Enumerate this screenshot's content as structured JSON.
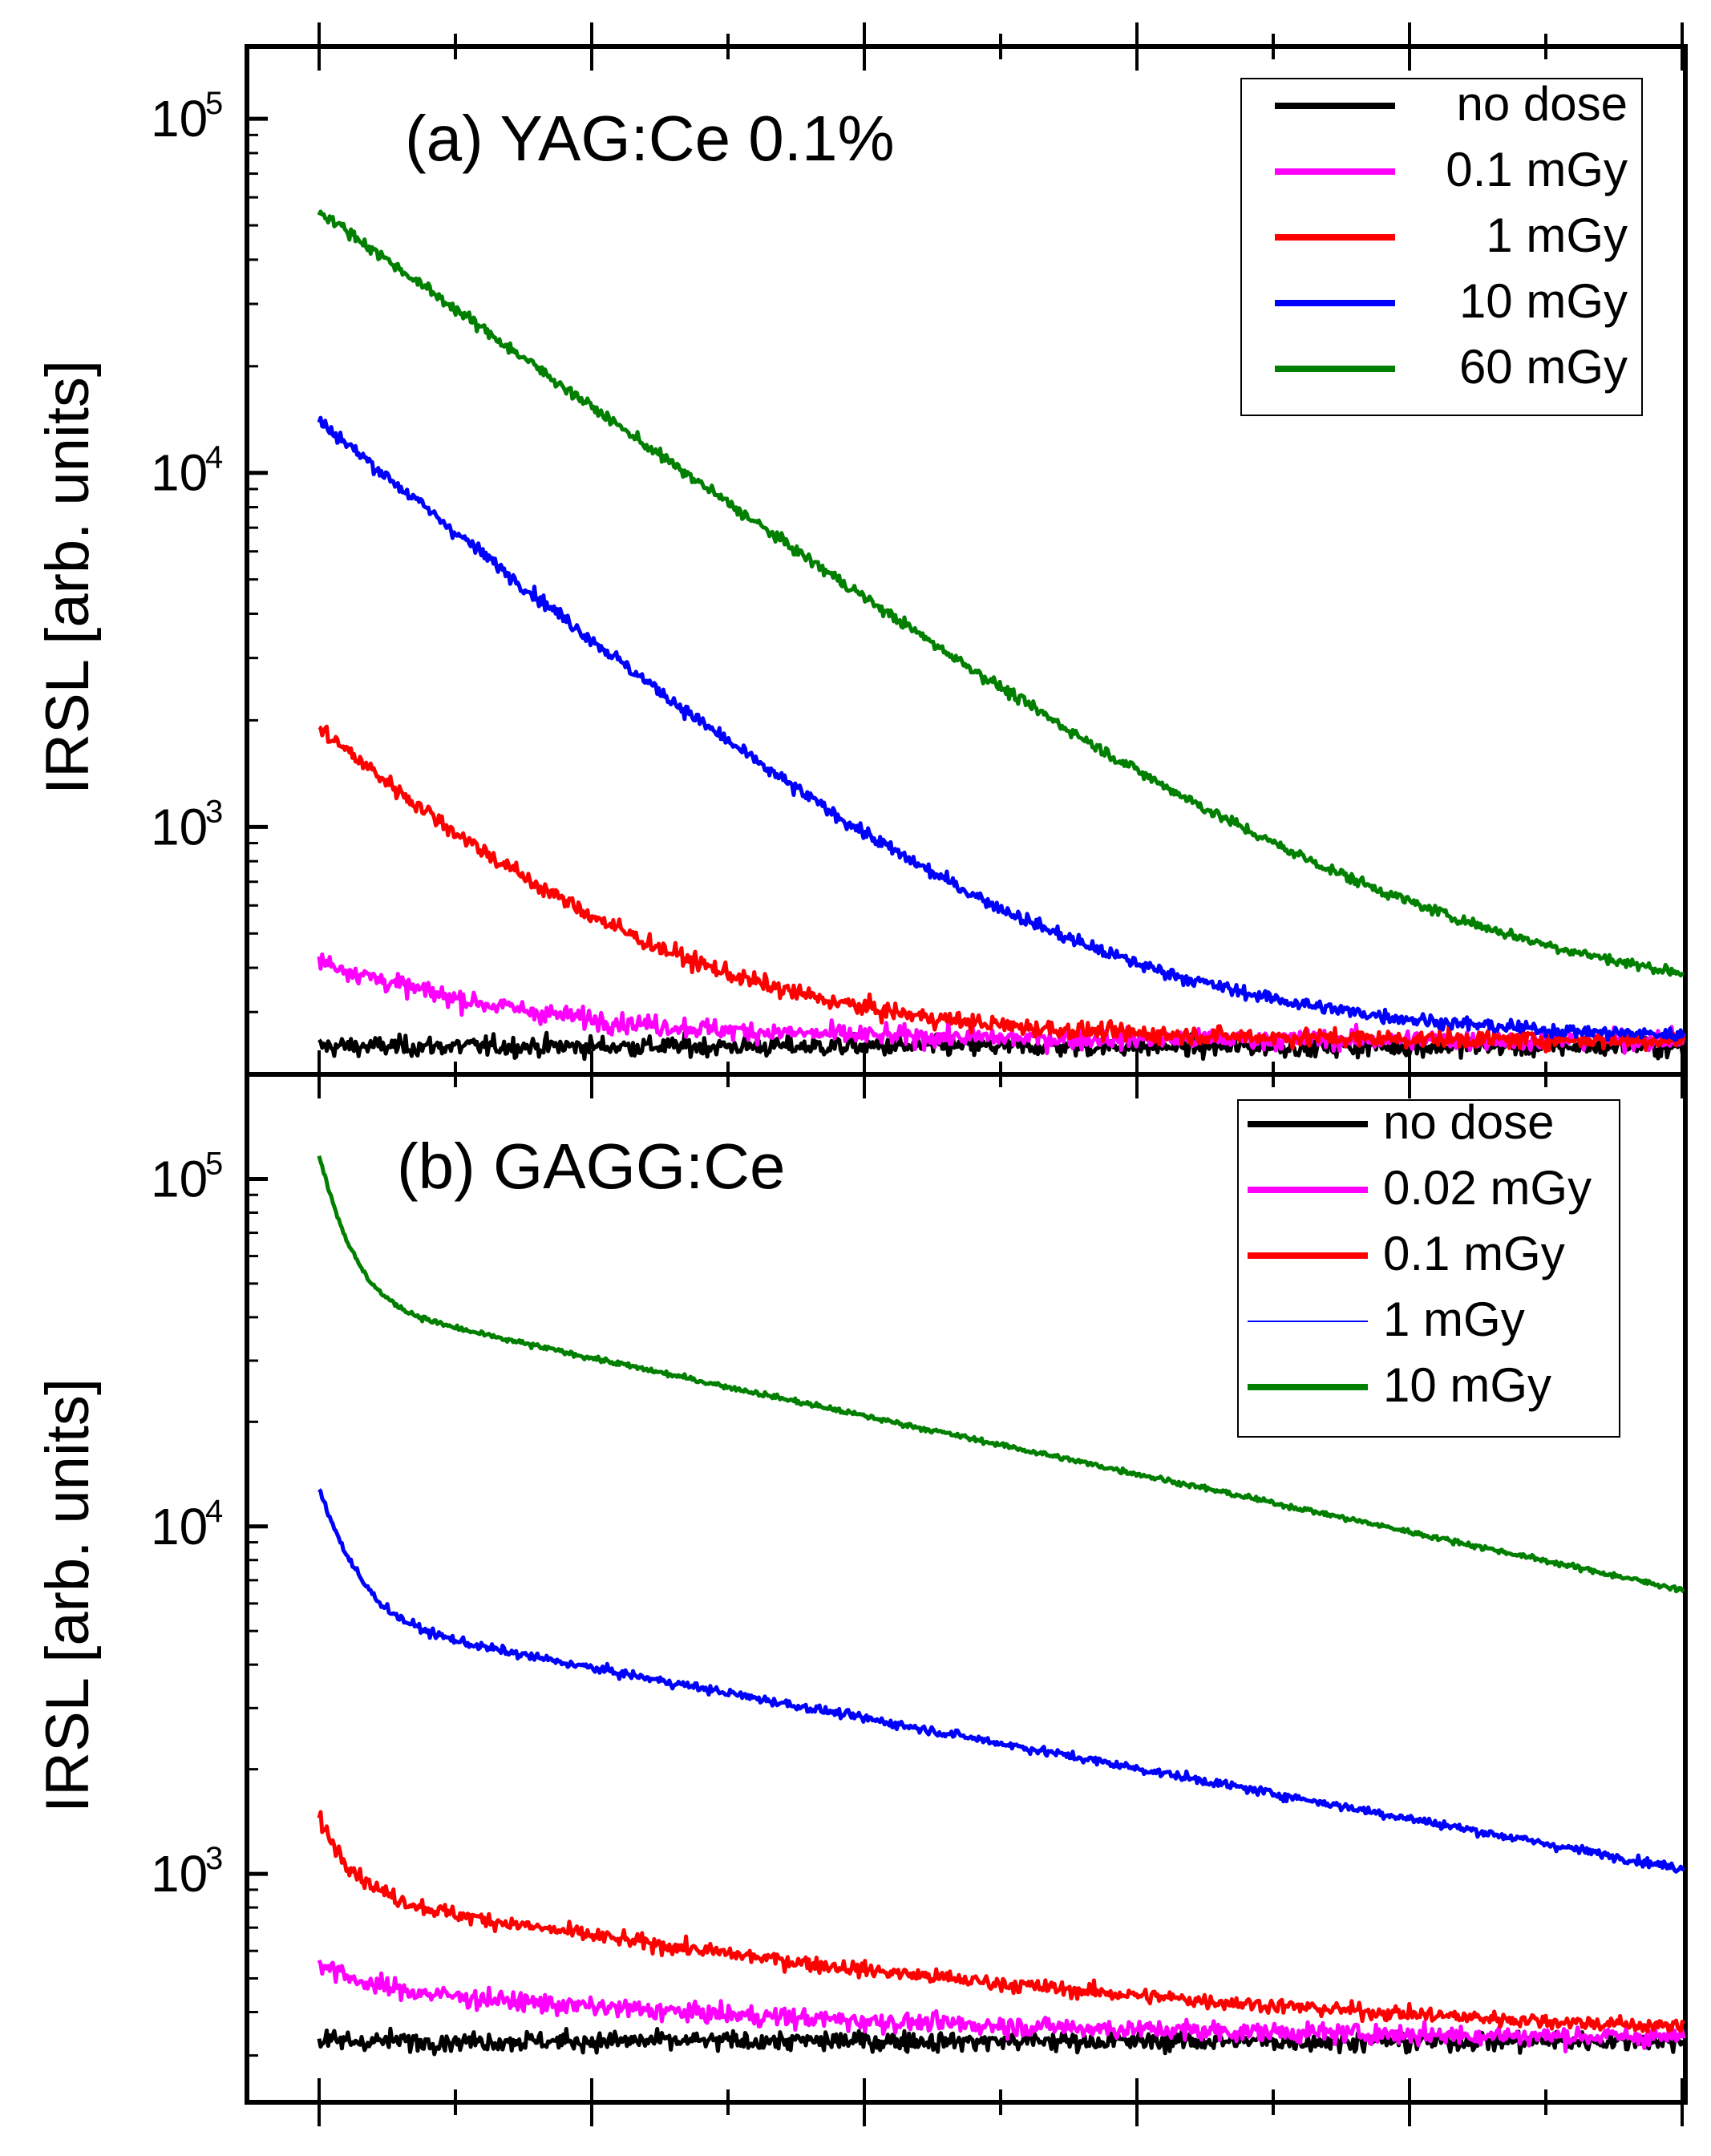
{
  "chart_data": [
    {
      "type": "line",
      "panel": "a",
      "title": "(a)   YAG:Ce 0.1%",
      "xlabel": "",
      "ylabel": "IRSL [arb. units]",
      "yscale": "log",
      "ylim": [
        200,
        160000
      ],
      "xlim": [
        0,
        1
      ],
      "xticks_labeled": false,
      "yticks": [
        {
          "value": 1000,
          "base": "10",
          "exp": "3"
        },
        {
          "value": 10000,
          "base": "10",
          "exp": "4"
        },
        {
          "value": 100000,
          "base": "10",
          "exp": "5"
        }
      ],
      "legend_position": "top-right",
      "series": [
        {
          "name": "no dose",
          "color": "#000000",
          "start": 240,
          "floor": 240,
          "tau": 0.3,
          "fast_amp": 0,
          "fast_tau": 0.03,
          "noise": 0.045
        },
        {
          "name": "0.1 mGy",
          "color": "#ff00ff",
          "start": 420,
          "floor": 250,
          "tau": 0.13,
          "fast_amp": 0,
          "fast_tau": 0.03,
          "noise": 0.045
        },
        {
          "name": "1 mGy",
          "color": "#ff0000",
          "start": 1900,
          "floor": 250,
          "tau": 0.12,
          "fast_amp": 0,
          "fast_tau": 0.03,
          "noise": 0.04
        },
        {
          "name": "10 mGy",
          "color": "#0000ff",
          "start": 14000,
          "floor": 250,
          "tau": 0.135,
          "fast_amp": 0,
          "fast_tau": 0.03,
          "noise": 0.03
        },
        {
          "name": "60 mGy",
          "color": "#007f00",
          "start": 55000,
          "floor": 300,
          "tau": 0.155,
          "fast_amp": 0,
          "fast_tau": 0.03,
          "noise": 0.025
        }
      ]
    },
    {
      "type": "line",
      "panel": "b",
      "title": "(b)   GAGG:Ce",
      "xlabel": "",
      "ylabel": "IRSL [arb. units]",
      "yscale": "log",
      "ylim": [
        220,
        200000
      ],
      "xlim": [
        0,
        1
      ],
      "xticks_labeled": false,
      "yticks": [
        {
          "value": 1000,
          "base": "10",
          "exp": "3"
        },
        {
          "value": 10000,
          "base": "10",
          "exp": "4"
        },
        {
          "value": 100000,
          "base": "10",
          "exp": "5"
        }
      ],
      "legend_position": "top-right",
      "series": [
        {
          "name": "no dose",
          "color": "#000000",
          "start": 330,
          "floor": 330,
          "tau": 0.5,
          "fast_amp": 0,
          "fast_tau": 0.03,
          "noise": 0.045
        },
        {
          "name": "0.02 mGy",
          "color": "#ff00ff",
          "start": 560,
          "floor": 330,
          "tau": 0.35,
          "fast_amp": 0.35,
          "fast_tau": 0.025,
          "noise": 0.045
        },
        {
          "name": "0.1 mGy",
          "color": "#ff0000",
          "start": 1450,
          "floor": 310,
          "tau": 0.42,
          "fast_amp": 0.5,
          "fast_tau": 0.022,
          "noise": 0.035
        },
        {
          "name": "1 mGy",
          "color": "#0000ff",
          "start": 13000,
          "floor": 0,
          "tau": 0.6,
          "fast_amp": 0.58,
          "fast_tau": 0.022,
          "noise": 0.02
        },
        {
          "name": "10 mGy",
          "color": "#007f00",
          "start": 118000,
          "floor": 0,
          "tau": 0.52,
          "fast_amp": 0.62,
          "fast_tau": 0.018,
          "noise": 0.012
        }
      ]
    }
  ]
}
